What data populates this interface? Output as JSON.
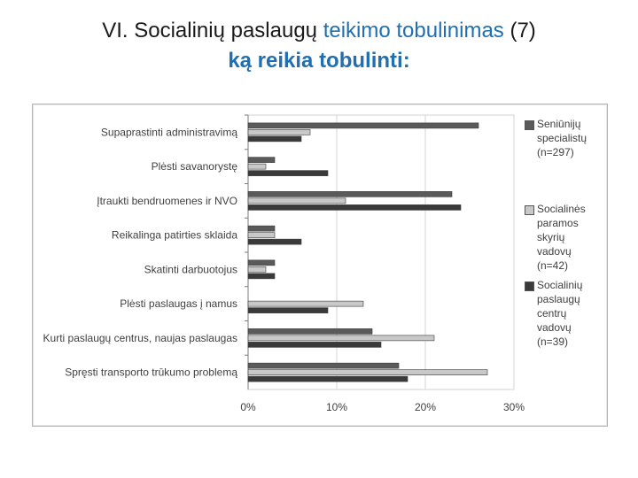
{
  "title": {
    "line1_prefix": "VI. Socialinių paslaugų ",
    "line1_accent": "teikimo tobulinimas",
    "line1_suffix": " (7)",
    "line2": "ką reikia tobulinti:"
  },
  "chart_data": {
    "type": "bar",
    "orientation": "horizontal",
    "categories": [
      "Supaprastinti administravimą",
      "Plėsti savanorystę",
      "Įtraukti bendruomenes ir NVO",
      "Reikalinga patirties sklaida",
      "Skatinti darbuotojus",
      "Plėsti paslaugas į namus",
      "Kurti paslaugų centrus, naujas paslaugas",
      "Spręsti transporto trūkumo problemą"
    ],
    "series": [
      {
        "name": "Seniūnijų specialistų (n=297)",
        "color": "#5a5a5a",
        "values": [
          26,
          3,
          23,
          3,
          3,
          0,
          14,
          17
        ]
      },
      {
        "name": "Socialinės paramos skyrių vadovų (n=42)",
        "color": "#c8c8c8",
        "values": [
          7,
          2,
          11,
          3,
          2,
          13,
          21,
          27
        ]
      },
      {
        "name": "Socialinių paslaugų centrų vadovų (n=39)",
        "color": "#3a3a3a",
        "values": [
          6,
          9,
          24,
          6,
          3,
          9,
          15,
          18
        ]
      }
    ],
    "xlim": [
      0,
      30
    ],
    "xticks": [
      "0%",
      "10%",
      "20%",
      "30%"
    ],
    "grid": true,
    "legend_position": "right"
  },
  "legend": {
    "lines": [
      [
        "Seniūnijų",
        "specialistų",
        "(n=297)"
      ],
      [
        "Socialinės",
        "paramos",
        "skyrių",
        "vadovų",
        "(n=42)"
      ],
      [
        "Socialinių",
        "paslaugų",
        "centrų",
        "vadovų",
        "(n=39)"
      ]
    ]
  }
}
